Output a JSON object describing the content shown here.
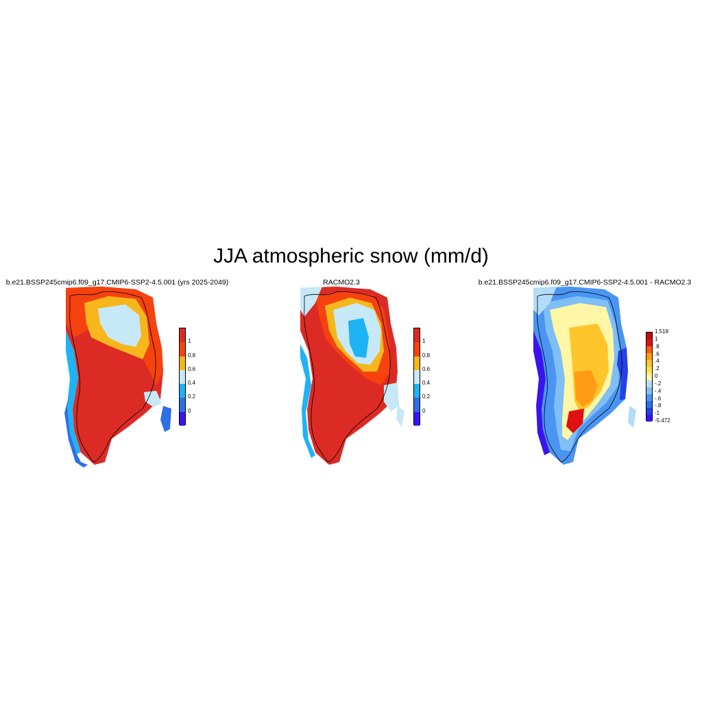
{
  "title": "JJA atmospheric snow (mm/d)",
  "panels": [
    {
      "title": "b.e21.BSSP245cmip6.f09_g17.CMIP6-SSP2-4.5.001 (yrs 2025-2049)",
      "colorbar": {
        "colors": [
          "#3a14f0",
          "#2f6fe6",
          "#1eb3f5",
          "#c6e8f7",
          "#f7b71c",
          "#f5420f",
          "#dc2b25"
        ],
        "labels": [
          "0",
          "0.2",
          "0.4",
          "0.6",
          "0.8",
          "1"
        ]
      }
    },
    {
      "title": "RACMO2.3",
      "colorbar": {
        "colors": [
          "#3a14f0",
          "#2f6fe6",
          "#1eb3f5",
          "#c6e8f7",
          "#f7b71c",
          "#f5420f",
          "#dc2b25"
        ],
        "labels": [
          "0",
          "0.2",
          "0.4",
          "0.6",
          "0.8",
          "1"
        ]
      }
    },
    {
      "title": "b.e21.BSSP245cmip6.f09_g17.CMIP6-SSP2-4.5.001 - RACMO2.3",
      "colorbar": {
        "colors": [
          "#3a14f0",
          "#2440e8",
          "#2f6fe6",
          "#4a95f2",
          "#7fbff5",
          "#b3dcf7",
          "#fff7a6",
          "#ffe14d",
          "#ffc52b",
          "#ff9b14",
          "#f95c12",
          "#e01010",
          "#c00d0d"
        ],
        "labels": [
          "-5.472",
          "-1",
          "-.8",
          "-.6",
          "-.4",
          "-.2",
          "0",
          ".2",
          ".4",
          ".6",
          ".8",
          "1",
          "1.518"
        ]
      }
    }
  ]
}
